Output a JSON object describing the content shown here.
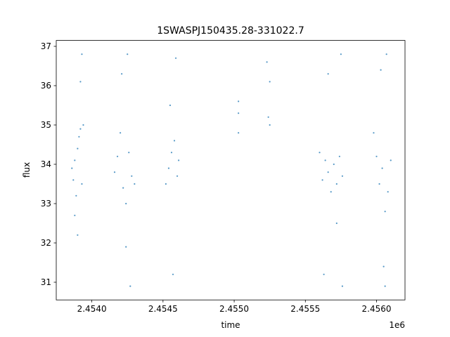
{
  "chart_data": {
    "type": "scatter",
    "title": "1SWASPJ150435.28-331022.7",
    "xlabel": "time",
    "ylabel": "flux",
    "x_offset_label": "1e6",
    "xlim": [
      2.45375,
      2.4562
    ],
    "ylim": [
      30.55,
      37.15
    ],
    "x_ticks": [
      2.454,
      2.4545,
      2.455,
      2.4555,
      2.456
    ],
    "x_tick_labels": [
      "2.4540",
      "2.4545",
      "2.4550",
      "2.4555",
      "2.4560"
    ],
    "y_ticks": [
      31,
      32,
      33,
      34,
      35,
      36,
      37
    ],
    "y_tick_labels": [
      "31",
      "32",
      "33",
      "34",
      "35",
      "36",
      "37"
    ],
    "grid": false,
    "marker_color": "#1f77b4",
    "series": [
      {
        "points": [
          [
            2.45386,
            33.9
          ],
          [
            2.45387,
            33.6
          ],
          [
            2.45388,
            34.1
          ],
          [
            2.45389,
            33.2
          ],
          [
            2.4539,
            34.4
          ],
          [
            2.45391,
            34.7
          ],
          [
            2.45392,
            34.9
          ],
          [
            2.45393,
            33.5
          ],
          [
            2.45394,
            35.0
          ],
          [
            2.45388,
            32.7
          ],
          [
            2.4539,
            32.2
          ],
          [
            2.45392,
            36.1
          ],
          [
            2.45393,
            36.8
          ],
          [
            2.45416,
            33.8
          ],
          [
            2.45418,
            34.2
          ],
          [
            2.4542,
            34.8
          ],
          [
            2.45422,
            33.4
          ],
          [
            2.45424,
            33.0
          ],
          [
            2.45426,
            34.3
          ],
          [
            2.45428,
            33.7
          ],
          [
            2.4543,
            33.5
          ],
          [
            2.45421,
            36.3
          ],
          [
            2.45424,
            31.9
          ],
          [
            2.45427,
            30.9
          ],
          [
            2.45425,
            36.8
          ],
          [
            2.45452,
            33.5
          ],
          [
            2.45454,
            33.9
          ],
          [
            2.45456,
            34.3
          ],
          [
            2.45458,
            34.6
          ],
          [
            2.4546,
            33.7
          ],
          [
            2.45461,
            34.1
          ],
          [
            2.45455,
            35.5
          ],
          [
            2.45457,
            31.2
          ],
          [
            2.45459,
            36.7
          ],
          [
            2.45503,
            35.3
          ],
          [
            2.45503,
            34.8
          ],
          [
            2.45503,
            35.6
          ],
          [
            2.45523,
            36.6
          ],
          [
            2.45524,
            35.2
          ],
          [
            2.45525,
            36.1
          ],
          [
            2.45525,
            35.0
          ],
          [
            2.4556,
            34.3
          ],
          [
            2.45562,
            33.6
          ],
          [
            2.45564,
            34.1
          ],
          [
            2.45566,
            33.8
          ],
          [
            2.45568,
            33.3
          ],
          [
            2.4557,
            34.0
          ],
          [
            2.45572,
            33.5
          ],
          [
            2.45574,
            34.2
          ],
          [
            2.45576,
            33.7
          ],
          [
            2.45563,
            31.2
          ],
          [
            2.45566,
            36.3
          ],
          [
            2.45572,
            32.5
          ],
          [
            2.45575,
            36.8
          ],
          [
            2.45576,
            30.9
          ],
          [
            2.45598,
            34.8
          ],
          [
            2.456,
            34.2
          ],
          [
            2.45602,
            33.5
          ],
          [
            2.45604,
            33.9
          ],
          [
            2.45606,
            32.8
          ],
          [
            2.45608,
            33.3
          ],
          [
            2.4561,
            34.1
          ],
          [
            2.45605,
            31.4
          ],
          [
            2.45603,
            36.4
          ],
          [
            2.45606,
            30.9
          ],
          [
            2.45607,
            36.8
          ]
        ]
      }
    ]
  }
}
